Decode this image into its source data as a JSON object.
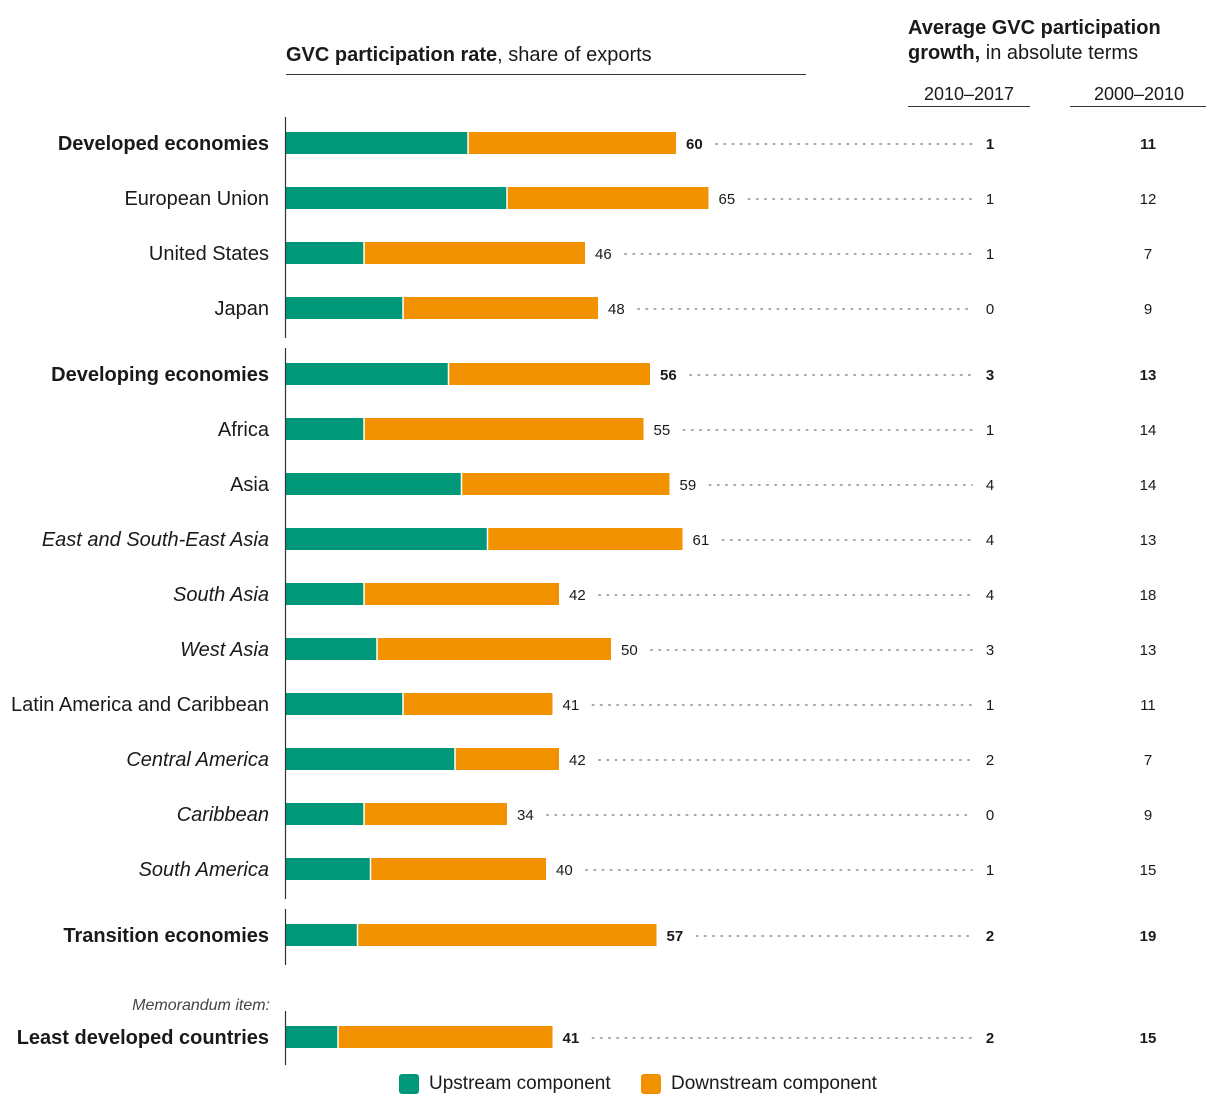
{
  "header": {
    "left_title_bold": "GVC participation rate",
    "left_title_rest": ", share of exports",
    "right_title_line1": "Average GVC participation",
    "right_title_line2_bold": "growth,",
    "right_title_line2_rest": " in absolute terms",
    "col1_label": "2010–2017",
    "col2_label": "2000–2010"
  },
  "memo_label": "Memorandum item:",
  "legend": {
    "upstream": "Upstream component",
    "downstream": "Downstream component"
  },
  "colors": {
    "upstream": "#009878",
    "downstream": "#f39200",
    "text": "#1a1a1a",
    "dots": "#9a9a9a"
  },
  "chart_data": {
    "type": "bar",
    "orientation": "horizontal",
    "stacked": true,
    "series_names": [
      "Upstream component",
      "Downstream component"
    ],
    "groups": [
      {
        "rows": [
          {
            "label": "Developed economies",
            "style": "bold",
            "upstream": 28,
            "downstream": 32,
            "total": "60",
            "growth_2010_2017": "1",
            "growth_2000_2010": "11"
          },
          {
            "label": "European Union",
            "style": "normal",
            "upstream": 34,
            "downstream": 31,
            "total": "65",
            "growth_2010_2017": "1",
            "growth_2000_2010": "12"
          },
          {
            "label": "United States",
            "style": "normal",
            "upstream": 12,
            "downstream": 34,
            "total": "46",
            "growth_2010_2017": "1",
            "growth_2000_2010": "7"
          },
          {
            "label": "Japan",
            "style": "normal",
            "upstream": 18,
            "downstream": 30,
            "total": "48",
            "growth_2010_2017": "0",
            "growth_2000_2010": "9"
          }
        ]
      },
      {
        "rows": [
          {
            "label": "Developing economies",
            "style": "bold",
            "upstream": 25,
            "downstream": 31,
            "total": "56",
            "growth_2010_2017": "3",
            "growth_2000_2010": "13"
          },
          {
            "label": "Africa",
            "style": "normal",
            "upstream": 12,
            "downstream": 43,
            "total": "55",
            "growth_2010_2017": "1",
            "growth_2000_2010": "14"
          },
          {
            "label": "Asia",
            "style": "normal",
            "upstream": 27,
            "downstream": 32,
            "total": "59",
            "growth_2010_2017": "4",
            "growth_2000_2010": "14"
          },
          {
            "label": "East and South-East Asia",
            "style": "italic",
            "upstream": 31,
            "downstream": 30,
            "total": "61",
            "growth_2010_2017": "4",
            "growth_2000_2010": "13"
          },
          {
            "label": "South Asia",
            "style": "italic",
            "upstream": 12,
            "downstream": 30,
            "total": "42",
            "growth_2010_2017": "4",
            "growth_2000_2010": "18"
          },
          {
            "label": "West Asia",
            "style": "italic",
            "upstream": 14,
            "downstream": 36,
            "total": "50",
            "growth_2010_2017": "3",
            "growth_2000_2010": "13"
          },
          {
            "label": "Latin America and Caribbean",
            "style": "normal",
            "upstream": 18,
            "downstream": 23,
            "total": "41",
            "growth_2010_2017": "1",
            "growth_2000_2010": "11"
          },
          {
            "label": "Central America",
            "style": "italic",
            "upstream": 26,
            "downstream": 16,
            "total": "42",
            "growth_2010_2017": "2",
            "growth_2000_2010": "7"
          },
          {
            "label": "Caribbean",
            "style": "italic",
            "upstream": 12,
            "downstream": 22,
            "total": "34",
            "growth_2010_2017": "0",
            "growth_2000_2010": "9"
          },
          {
            "label": "South America",
            "style": "italic",
            "upstream": 13,
            "downstream": 27,
            "total": "40",
            "growth_2010_2017": "1",
            "growth_2000_2010": "15"
          }
        ]
      },
      {
        "rows": [
          {
            "label": "Transition economies",
            "style": "bold",
            "upstream": 11,
            "downstream": 46,
            "total": "57",
            "growth_2010_2017": "2",
            "growth_2000_2010": "19"
          }
        ]
      },
      {
        "memo": true,
        "rows": [
          {
            "label": "Least developed countries",
            "style": "bold",
            "upstream": 8,
            "downstream": 33,
            "total": "41",
            "growth_2010_2017": "2",
            "growth_2000_2010": "15"
          }
        ]
      }
    ]
  }
}
